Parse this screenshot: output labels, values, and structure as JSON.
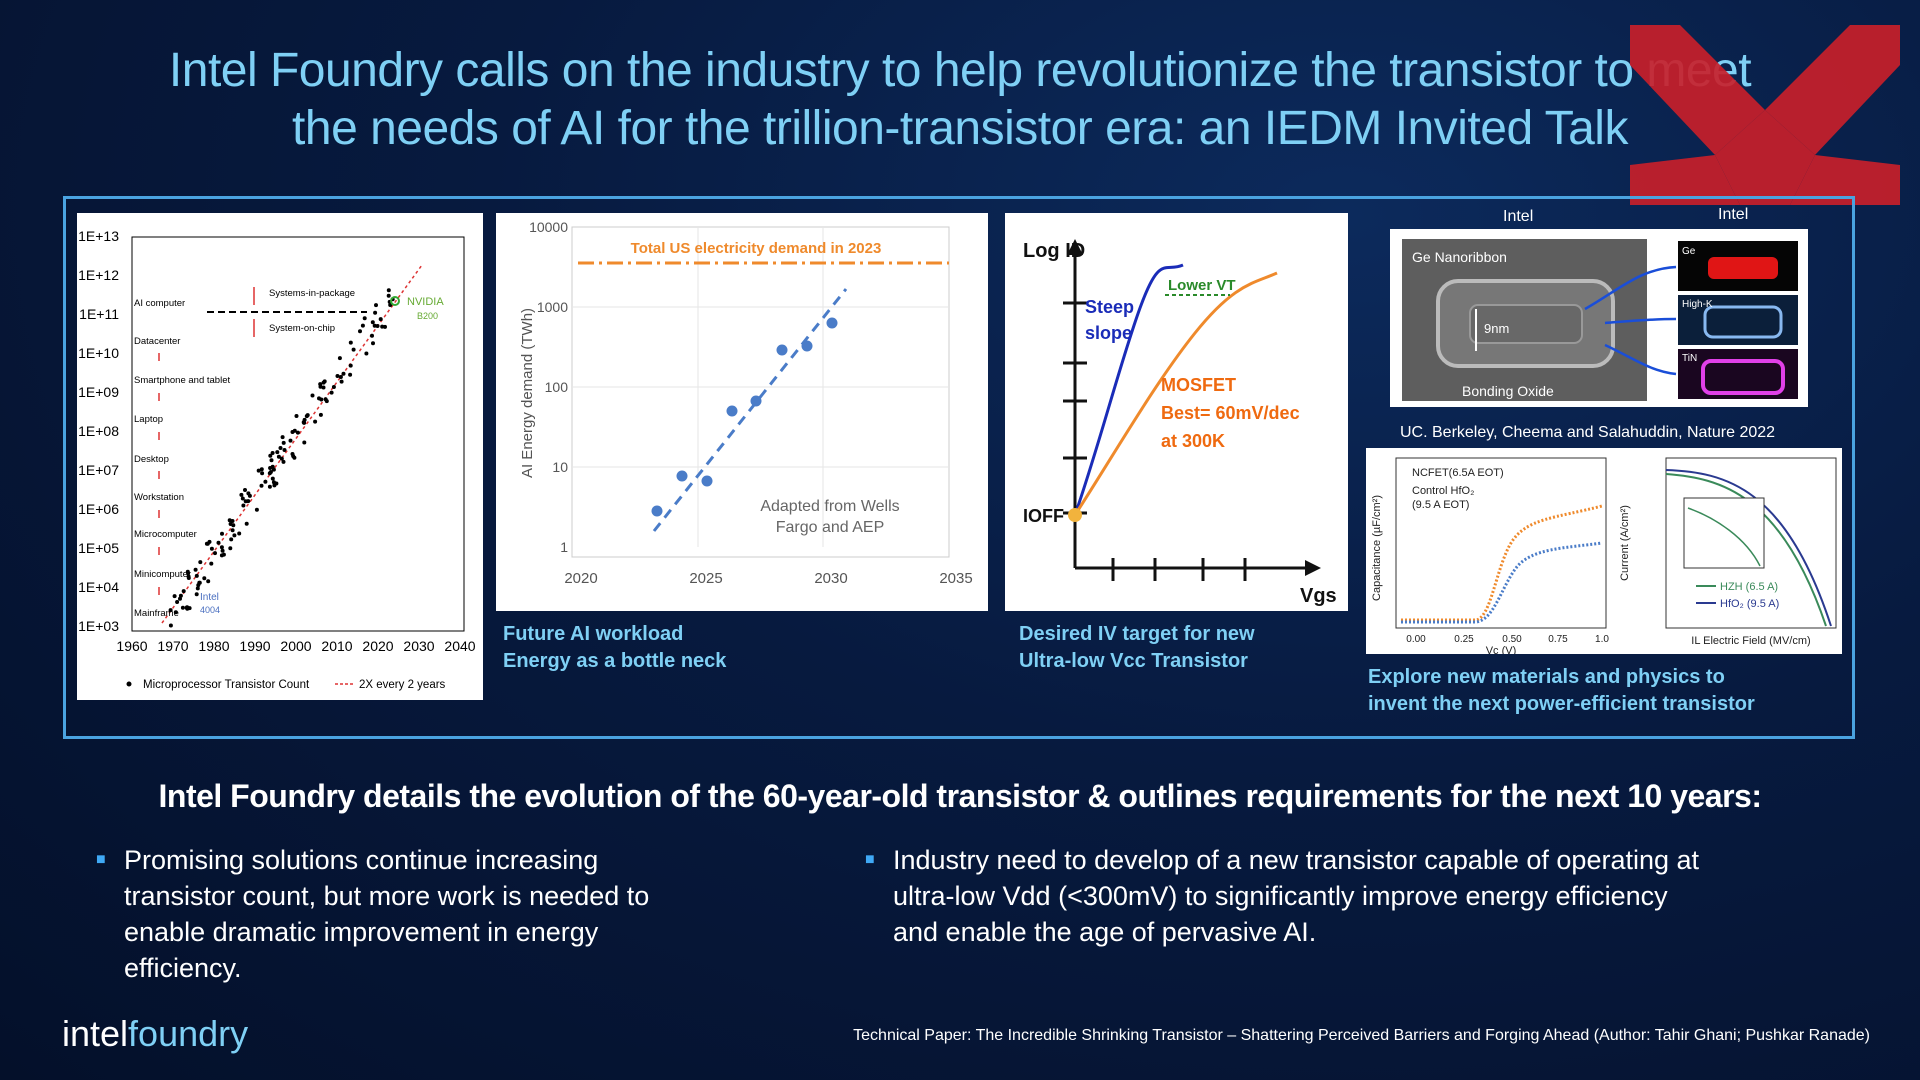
{
  "title": {
    "line1": "Intel Foundry calls on the industry to help revolutionize the transistor to meet",
    "line2": "the needs of AI for the trillion-transistor era: an IEDM Invited Talk"
  },
  "brand_mark_color": "#c8202a",
  "panels": {
    "moore": {
      "ylabels": [
        "1E+13",
        "1E+12",
        "1E+11",
        "1E+10",
        "1E+09",
        "1E+08",
        "1E+07",
        "1E+06",
        "1E+05",
        "1E+04",
        "1E+03"
      ],
      "xlabels": [
        "1960",
        "1970",
        "1980",
        "1990",
        "2000",
        "2010",
        "2020",
        "2030",
        "2040"
      ],
      "eras": [
        "AI computer",
        "Datacenter",
        "Smartphone and tablet",
        "Laptop",
        "Desktop",
        "Workstation",
        "Microcomputer",
        "Minicomputer",
        "Mainframe"
      ],
      "sip": "Systems-in-package",
      "soc": "System-on-chip",
      "nvidia": "NVIDIA",
      "b200": "B200",
      "intel": "Intel",
      "i4004": "4004",
      "legend_count": "Microprocessor Transistor Count",
      "legend_trend": "2X every 2 years"
    },
    "energy": {
      "ylabel": "AI Energy demand (TWh)",
      "yticks": [
        "10000",
        "1000",
        "100",
        "10",
        "1"
      ],
      "xticks": [
        "2020",
        "2025",
        "2030",
        "2035"
      ],
      "total_label": "Total US electricity demand in 2023",
      "source1": "Adapted from Wells",
      "source2": "Fargo and AEP",
      "caption1": "Future AI workload",
      "caption2": "Energy as a bottle neck"
    },
    "iv": {
      "ylabel": "Log ID",
      "xlabel": "Vgs",
      "ioff": "IOFF",
      "steep1": "Steep",
      "steep2": "slope",
      "lowervt": "Lower VT",
      "mosfet1": "MOSFET",
      "mosfet2": "Best= 60mV/dec",
      "mosfet3": "at 300K",
      "caption1": "Desired IV target for new",
      "caption2": "Ultra-low Vcc Transistor"
    },
    "materials": {
      "intel_left": "Intel",
      "intel_right": "Intel",
      "ge_nanoribbon": "Ge Nanoribbon",
      "nm": "9nm",
      "bonding": "Bonding Oxide",
      "ge": "Ge",
      "highk": "High-K",
      "tin": "TiN",
      "citation": "UC. Berkeley, Cheema and Salahuddin, Nature  2022",
      "ncfet": "NCFET(6.5A EOT)",
      "control1": "Control HfO₂",
      "control2": "(9.5 A EOT)",
      "cap_ylabel": "Capacitance (µF/cm²)",
      "cap_xticks": [
        "0.00",
        "0.25",
        "0.50",
        "0.75",
        "1.0"
      ],
      "cap_xlabel": "Vc (V)",
      "cur_ylabel": "Current (A/cm²)",
      "cur_xlabel": "IL Electric Field (MV/cm)",
      "hzh": "HZH (6.5 A)",
      "hfo": "HfO₂ (9.5 A)",
      "caption1": "Explore new materials and physics to",
      "caption2": "invent  the next power-efficient transistor"
    }
  },
  "subheading": "Intel Foundry details the evolution of the 60-year-old transistor & outlines requirements for the next 10 years:",
  "bullets": [
    {
      "lines": [
        "Promising solutions continue increasing",
        "transistor count, but more work is needed to",
        "enable dramatic improvement in energy",
        "efficiency."
      ]
    },
    {
      "lines": [
        "Industry need to develop of a new transistor capable of operating at",
        "ultra-low Vdd (<300mV) to significantly improve energy efficiency",
        "and enable the age of pervasive AI."
      ]
    }
  ],
  "logo": {
    "intel": "intel",
    "foundry": "foundry"
  },
  "footnote": "Technical Paper: The Incredible Shrinking Transistor – Shattering Perceived Barriers and Forging Ahead (Author: Tahir Ghani; Pushkar Ranade)"
}
